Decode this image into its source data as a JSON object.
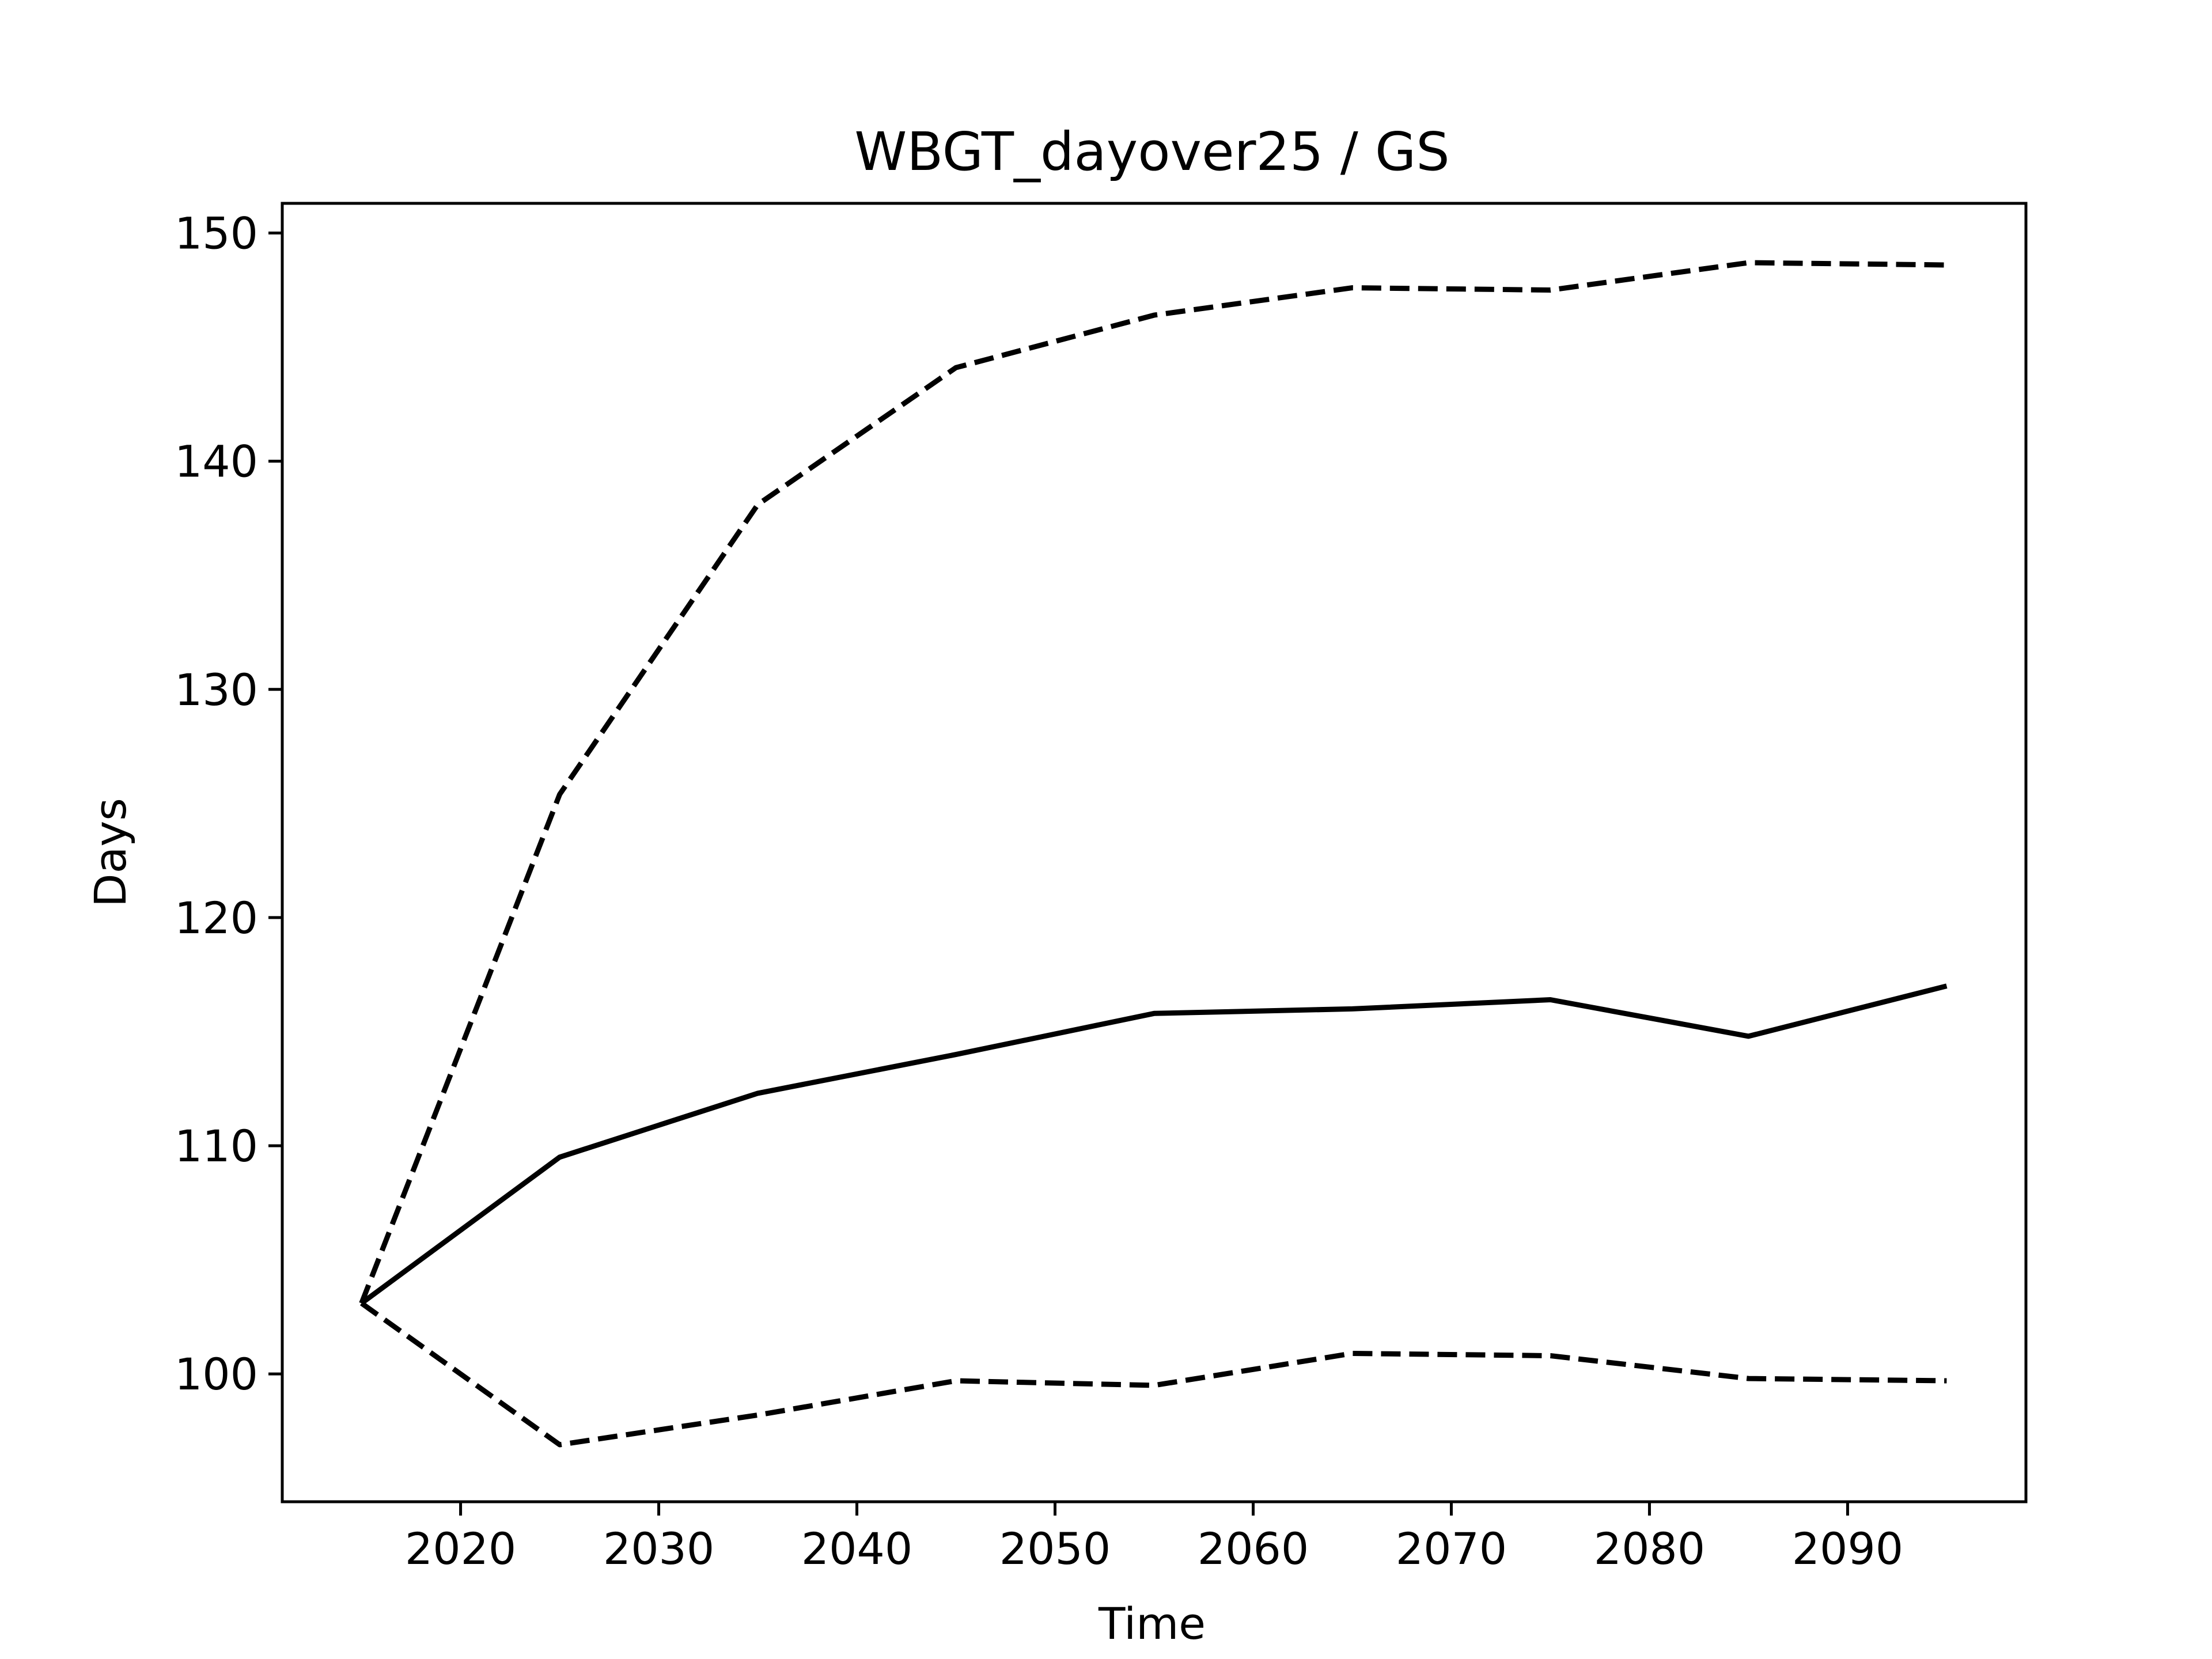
{
  "chart_data": {
    "type": "line",
    "title": "WBGT_dayover25 / GS",
    "xlabel": "Time",
    "ylabel": "Days",
    "xlim": [
      2011,
      2099
    ],
    "ylim": [
      94.4,
      151.3
    ],
    "xticks": [
      2020,
      2030,
      2040,
      2050,
      2060,
      2070,
      2080,
      2090
    ],
    "yticks": [
      100,
      110,
      120,
      130,
      140,
      150
    ],
    "grid": false,
    "x": [
      2015,
      2025,
      2035,
      2045,
      2055,
      2065,
      2075,
      2085,
      2095
    ],
    "series": [
      {
        "style": "dashed",
        "color": "#000000",
        "values": [
          103.1,
          125.4,
          138.1,
          144.1,
          146.4,
          147.6,
          147.5,
          148.7,
          148.6
        ]
      },
      {
        "style": "solid",
        "color": "#000000",
        "values": [
          103.1,
          109.5,
          112.3,
          114.0,
          115.8,
          116.0,
          116.4,
          114.8,
          117.0
        ]
      },
      {
        "style": "dashed",
        "color": "#000000",
        "values": [
          103.1,
          96.9,
          98.2,
          99.7,
          99.5,
          100.9,
          100.8,
          99.8,
          99.7
        ]
      }
    ]
  }
}
